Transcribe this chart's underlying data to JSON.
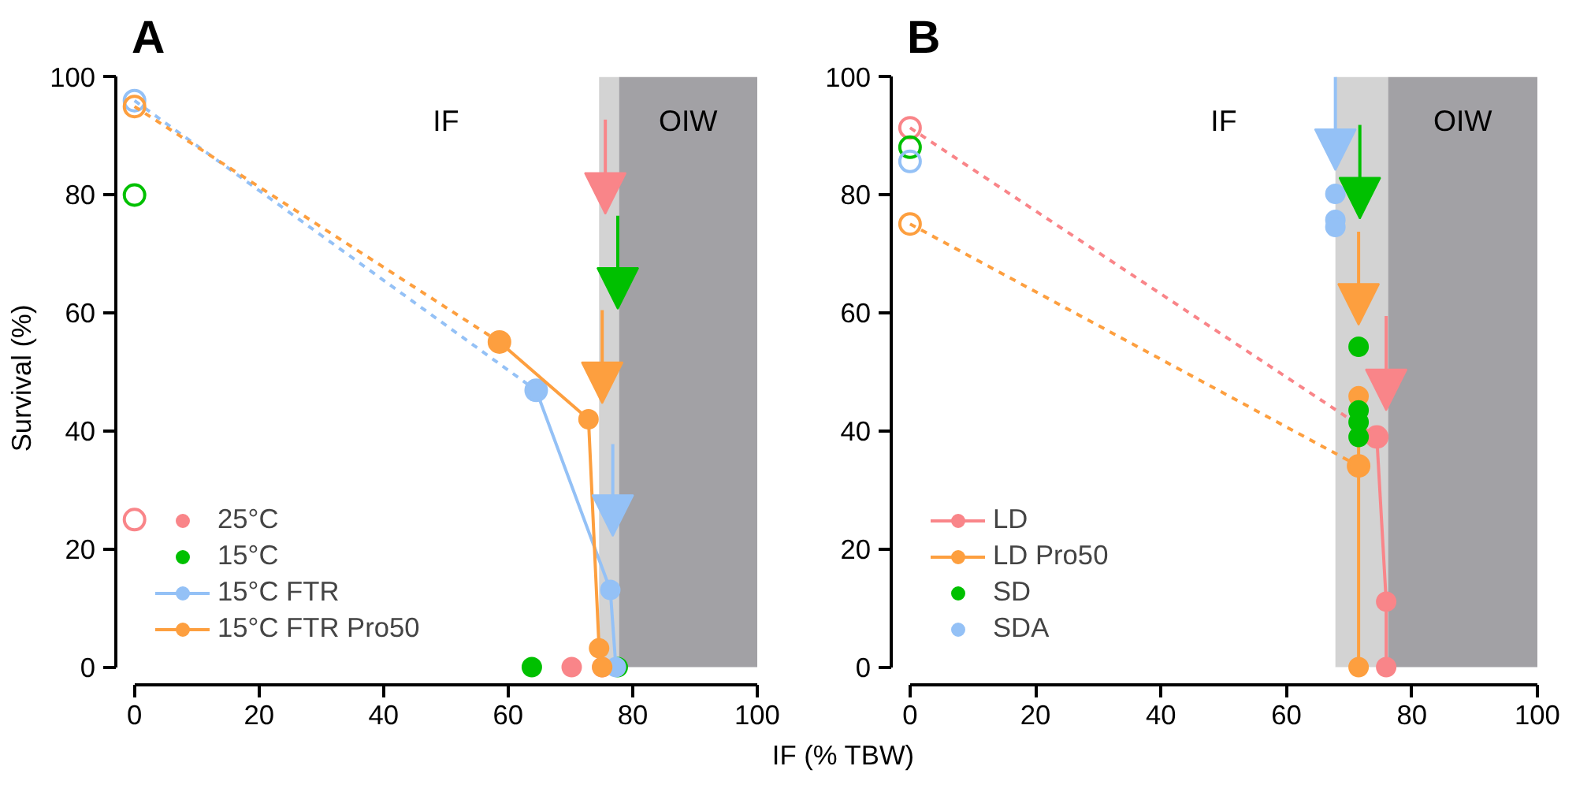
{
  "chart_data": [
    {
      "type": "line",
      "title": "A",
      "ylabel": "Survival (%)",
      "xlabel": "IF (% TBW)",
      "xlim": [
        0,
        100
      ],
      "ylim": [
        0,
        100
      ],
      "xticks": [
        0,
        20,
        40,
        60,
        80,
        100
      ],
      "yticks": [
        0,
        20,
        40,
        60,
        80,
        100
      ],
      "grid": false,
      "legend": "bottom left",
      "bands": [
        {
          "axis": "x",
          "from": 74.6,
          "to": 77.8,
          "color": "#d3d3d3"
        },
        {
          "axis": "x",
          "from": 77.8,
          "to": 100,
          "color": "#a2a1a5",
          "label": "OIW"
        }
      ],
      "annotations": [
        "IF"
      ],
      "series": [
        {
          "line_style": "dashed",
          "marker": "circle",
          "color": "#f98589",
          "x": [
            0
          ],
          "values": [
            25
          ]
        },
        {
          "line_style": "dashed",
          "marker": "circle",
          "color": "#00c000",
          "x": [
            0
          ],
          "values": [
            80
          ]
        },
        {
          "line_style": "dashed",
          "marker": "circle",
          "color": "#94c1f6",
          "x": [
            0,
            64.5
          ],
          "values": [
            96,
            46.9
          ]
        },
        {
          "line_style": "dashed",
          "marker": "circle",
          "color": "#fd9f3f",
          "x": [
            0,
            58.6
          ],
          "values": [
            95,
            55.1
          ]
        },
        {
          "name": "25°C",
          "type": "scatter",
          "color": "#f98589",
          "x": [
            70.2,
            75.1
          ],
          "values": [
            0,
            0
          ]
        },
        {
          "name": "15°C",
          "type": "scatter",
          "color": "#00c000",
          "x": [
            63.8,
            77.6
          ],
          "values": [
            0,
            0
          ]
        },
        {
          "name": "15°C FTR",
          "marker": "circle",
          "color": "#94c1f6",
          "x": [
            64.5,
            76.4,
            77.3
          ],
          "values": [
            46.9,
            13.1,
            0
          ]
        },
        {
          "name": "15°C FTR Pro50",
          "marker": "circle",
          "color": "#fd9f3f",
          "x": [
            58.6,
            72.9,
            74.6,
            75.1
          ],
          "values": [
            55.1,
            42.0,
            3.2,
            0
          ]
        }
      ]
    },
    {
      "type": "line",
      "title": "B",
      "xlim": [
        0,
        100
      ],
      "ylim": [
        0,
        100
      ],
      "xticks": [
        0,
        20,
        40,
        60,
        80,
        100
      ],
      "yticks": [
        0,
        20,
        40,
        60,
        80,
        100
      ],
      "grid": false,
      "legend": "bottom left",
      "bands": [
        {
          "axis": "x",
          "from": 67.8,
          "to": 76.2,
          "color": "#d3d3d3"
        },
        {
          "axis": "x",
          "from": 76.2,
          "to": 100,
          "color": "#a2a1a5",
          "label": "OIW"
        }
      ],
      "annotations": [
        "IF"
      ],
      "series": [
        {
          "line_style": "dashed",
          "marker": "circle",
          "color": "#f98589",
          "x": [
            0,
            74.4
          ],
          "values": [
            91.4,
            39.0
          ]
        },
        {
          "line_style": "dashed",
          "marker": "circle",
          "color": "#00c000",
          "x": [
            0
          ],
          "values": [
            88.1
          ]
        },
        {
          "line_style": "dashed",
          "marker": "circle",
          "color": "#94c1f6",
          "x": [
            0
          ],
          "values": [
            85.7
          ]
        },
        {
          "line_style": "dashed",
          "marker": "circle",
          "color": "#fd9f3f",
          "x": [
            0,
            71.5
          ],
          "values": [
            75.1,
            34.1
          ]
        },
        {
          "name": "LD",
          "marker": "circle",
          "color": "#f98589",
          "x": [
            74.4,
            75.9,
            75.9
          ],
          "values": [
            39.0,
            11.1,
            0
          ]
        },
        {
          "name": "LD Pro50",
          "marker": "circle",
          "color": "#fd9f3f",
          "x": [
            71.5,
            71.5,
            71.5
          ],
          "values": [
            45.9,
            34.1,
            0
          ]
        },
        {
          "name": "SD",
          "type": "scatter",
          "color": "#00c000",
          "x": [
            71.5,
            71.5,
            71.5,
            71.5
          ],
          "values": [
            54.3,
            43.5,
            41.5,
            39.0
          ]
        },
        {
          "name": "SDA",
          "type": "scatter",
          "color": "#94c1f6",
          "x": [
            67.8,
            67.8,
            67.8
          ],
          "values": [
            80.2,
            75.8,
            74.6
          ]
        }
      ]
    }
  ]
}
